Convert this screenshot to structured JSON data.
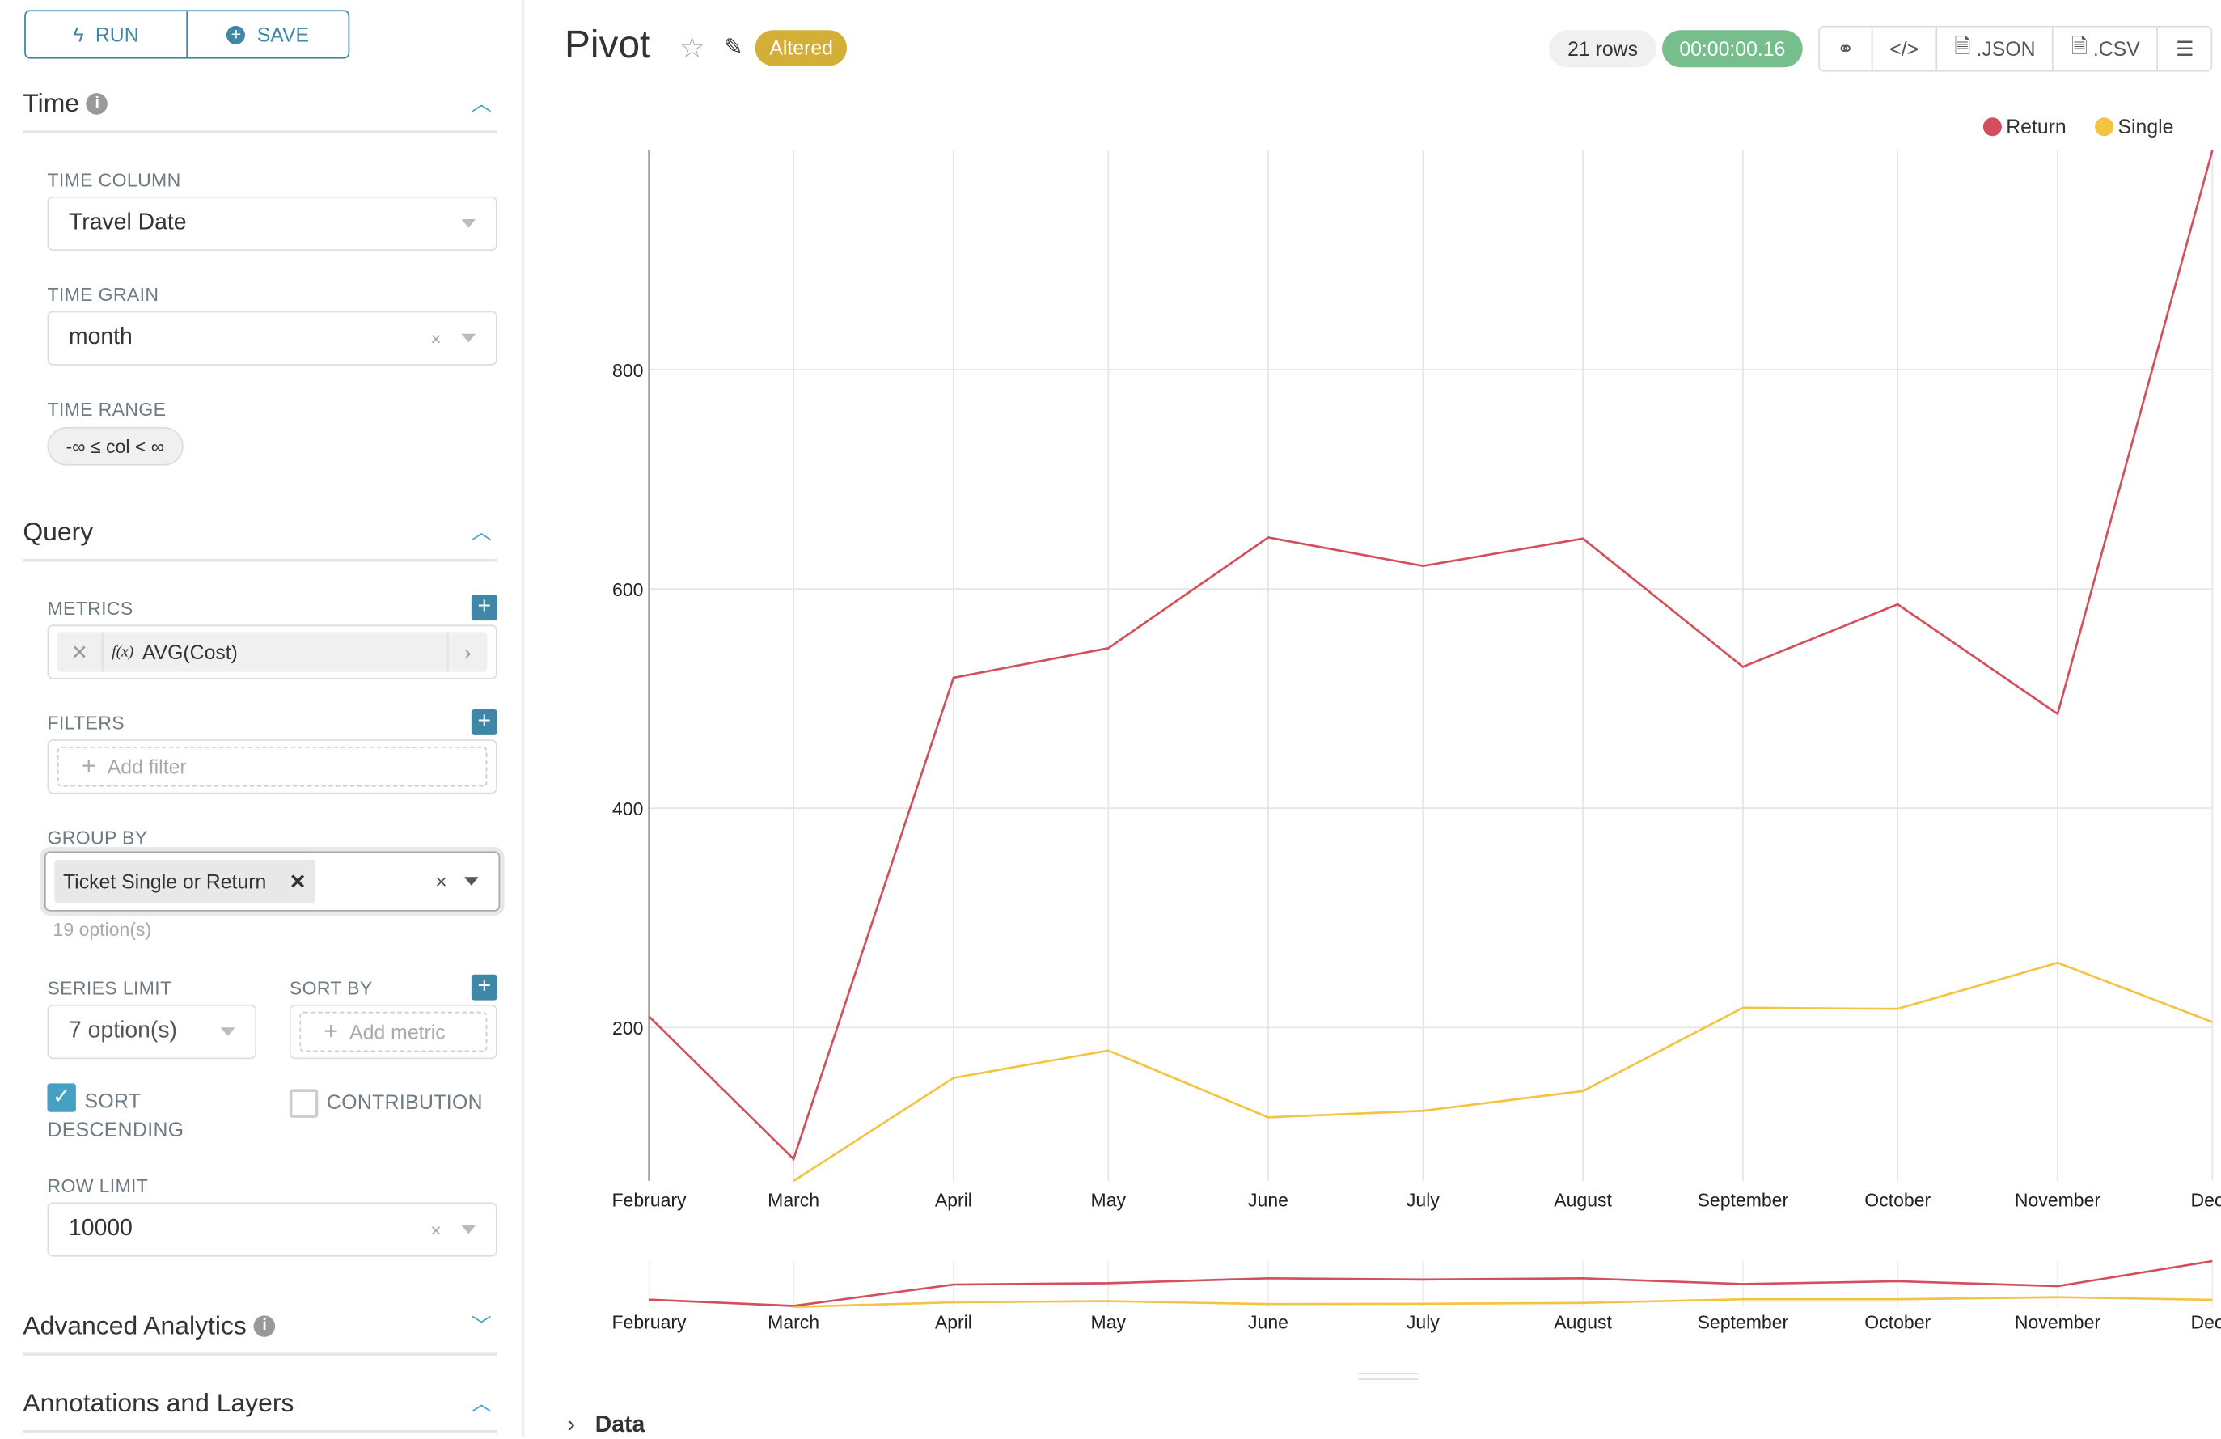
{
  "controls": {
    "run_label": "RUN",
    "save_label": "SAVE",
    "time_section": {
      "title": "Time",
      "time_column_label": "TIME COLUMN",
      "time_column_value": "Travel Date",
      "time_grain_label": "TIME GRAIN",
      "time_grain_value": "month",
      "time_range_label": "TIME RANGE",
      "time_range_value": "-∞ ≤ col < ∞"
    },
    "query_section": {
      "title": "Query",
      "metrics_label": "METRICS",
      "metric_fx": "f(x)",
      "metric_value": "AVG(Cost)",
      "filters_label": "FILTERS",
      "add_filter": "Add filter",
      "group_by_label": "GROUP BY",
      "group_by_value": "Ticket Single or Return",
      "group_by_options": "19 option(s)",
      "series_limit_label": "SERIES LIMIT",
      "series_limit_value": "7 option(s)",
      "sort_by_label": "SORT BY",
      "add_metric": "Add metric",
      "sort_desc_label": "SORT DESCENDING",
      "sort_desc_checked": true,
      "contribution_label": "CONTRIBUTION",
      "contribution_checked": false,
      "row_limit_label": "ROW LIMIT",
      "row_limit_value": "10000"
    },
    "advanced_title": "Advanced Analytics",
    "annotations_title": "Annotations and Layers"
  },
  "header": {
    "title": "Pivot",
    "status_badge": "Altered",
    "rows": "21 rows",
    "timer": "00:00:00.16",
    "json_label": ".JSON",
    "csv_label": ".CSV"
  },
  "colors": {
    "accent": "#3f87a6",
    "altered": "#d4af37",
    "timer": "#76bf8c",
    "return": "#d2505c",
    "single": "#f5c342"
  },
  "data_section_label": "Data",
  "chart_data": {
    "type": "line",
    "categories": [
      "February",
      "March",
      "April",
      "May",
      "June",
      "July",
      "August",
      "September",
      "October",
      "November",
      "Dece"
    ],
    "series": [
      {
        "name": "Return",
        "values": [
          210,
          80,
          519,
          546,
          647,
          621,
          646,
          529,
          586,
          486,
          1000
        ]
      },
      {
        "name": "Single",
        "values": [
          null,
          60,
          154,
          179,
          118,
          124,
          142,
          218,
          217,
          259,
          205
        ]
      }
    ],
    "yticks": [
      200,
      400,
      600,
      800
    ],
    "ylim": [
      60,
      1000
    ],
    "grid": true,
    "legend": "top-right"
  }
}
